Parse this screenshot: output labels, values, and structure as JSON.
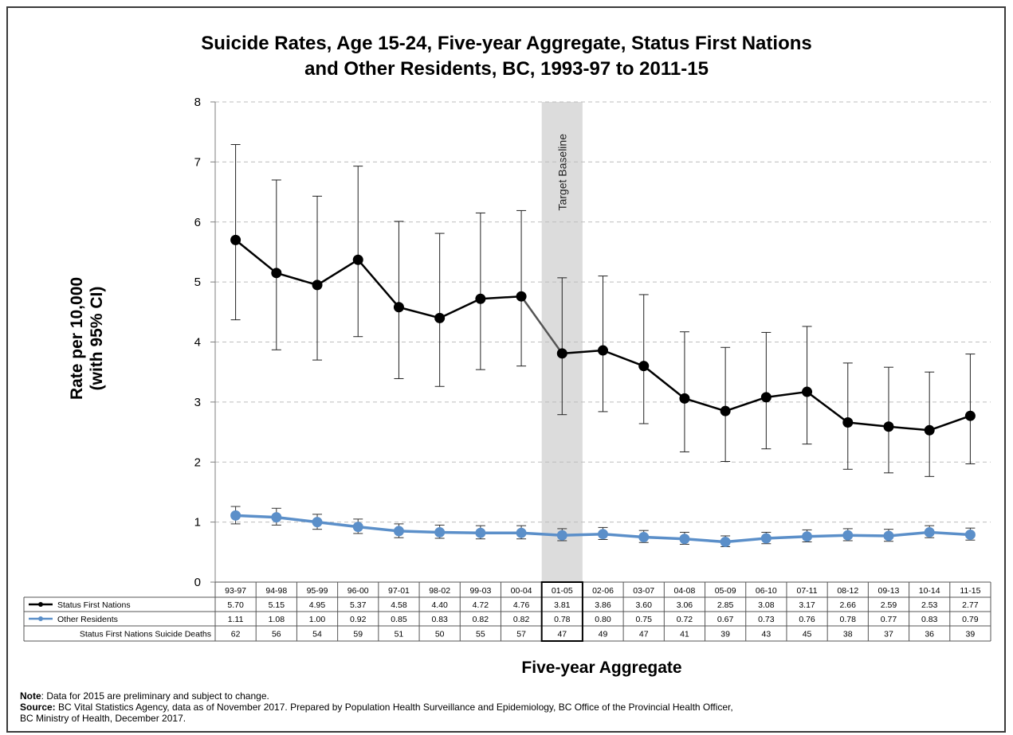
{
  "chart_data": {
    "type": "line",
    "title_line1": "Suicide Rates, Age 15-24, Five-year Aggregate, Status First Nations",
    "title_line2": "and Other Residents, BC, 1993-97 to 2011-15",
    "ylabel_line1": "Rate per 10,000",
    "ylabel_line2": "(with 95% CI)",
    "xlabel": "Five-year  Aggregate",
    "ylim": [
      0,
      8
    ],
    "yticks": [
      "0",
      "1",
      "2",
      "3",
      "4",
      "5",
      "6",
      "7",
      "8"
    ],
    "grid": "horizontal dashed",
    "categories": [
      "93-97",
      "94-98",
      "95-99",
      "96-00",
      "97-01",
      "98-02",
      "99-03",
      "00-04",
      "01-05",
      "02-06",
      "03-07",
      "04-08",
      "05-09",
      "06-10",
      "07-11",
      "08-12",
      "09-13",
      "10-14",
      "11-15"
    ],
    "highlight": {
      "category": "01-05",
      "label": "Target Baseline"
    },
    "series": [
      {
        "name": "Status First Nations",
        "color": "#000000",
        "values": [
          5.7,
          5.15,
          4.95,
          5.37,
          4.58,
          4.4,
          4.72,
          4.76,
          3.81,
          3.86,
          3.6,
          3.06,
          2.85,
          3.08,
          3.17,
          2.66,
          2.59,
          2.53,
          2.77
        ],
        "labels": [
          "5.70",
          "5.15",
          "4.95",
          "5.37",
          "4.58",
          "4.40",
          "4.72",
          "4.76",
          "3.81",
          "3.86",
          "3.60",
          "3.06",
          "2.85",
          "3.08",
          "3.17",
          "2.66",
          "2.59",
          "2.53",
          "2.77"
        ],
        "ci_low": [
          4.37,
          3.87,
          3.7,
          4.09,
          3.39,
          3.26,
          3.54,
          3.6,
          2.79,
          2.84,
          2.64,
          2.17,
          2.01,
          2.22,
          2.3,
          1.88,
          1.82,
          1.76,
          1.97
        ],
        "ci_high": [
          7.29,
          6.7,
          6.43,
          6.93,
          6.01,
          5.81,
          6.15,
          6.19,
          5.07,
          5.1,
          4.79,
          4.17,
          3.91,
          4.16,
          4.26,
          3.65,
          3.58,
          3.5,
          3.8
        ]
      },
      {
        "name": "Other Residents",
        "color": "#5B8FC9",
        "values": [
          1.11,
          1.08,
          1.0,
          0.92,
          0.85,
          0.83,
          0.82,
          0.82,
          0.78,
          0.8,
          0.75,
          0.72,
          0.67,
          0.73,
          0.76,
          0.78,
          0.77,
          0.83,
          0.79
        ],
        "labels": [
          "1.11",
          "1.08",
          "1.00",
          "0.92",
          "0.85",
          "0.83",
          "0.82",
          "0.82",
          "0.78",
          "0.80",
          "0.75",
          "0.72",
          "0.67",
          "0.73",
          "0.76",
          "0.78",
          "0.77",
          "0.83",
          "0.79"
        ],
        "ci_low": [
          0.97,
          0.95,
          0.88,
          0.81,
          0.74,
          0.73,
          0.72,
          0.72,
          0.69,
          0.71,
          0.66,
          0.63,
          0.59,
          0.64,
          0.67,
          0.69,
          0.68,
          0.74,
          0.7
        ],
        "ci_high": [
          1.26,
          1.23,
          1.13,
          1.05,
          0.97,
          0.95,
          0.94,
          0.94,
          0.89,
          0.91,
          0.86,
          0.83,
          0.77,
          0.83,
          0.87,
          0.89,
          0.88,
          0.94,
          0.9
        ]
      }
    ],
    "table_row3": {
      "name": "Status First Nations Suicide Deaths",
      "values": [
        "62",
        "56",
        "54",
        "59",
        "51",
        "50",
        "55",
        "57",
        "47",
        "49",
        "47",
        "41",
        "39",
        "43",
        "45",
        "38",
        "37",
        "36",
        "39"
      ]
    }
  },
  "note": {
    "note_label": "Note",
    "note_text": ": Data for 2015 are preliminary and subject to change.",
    "source_label": "Source:",
    "source_text": " BC Vital Statistics Agency, data as of November  2017. Prepared by Population Health Surveillance and Epidemiology, BC Office of the Provincial Health Officer,",
    "source_text2": "BC Ministry of Health, December 2017."
  }
}
